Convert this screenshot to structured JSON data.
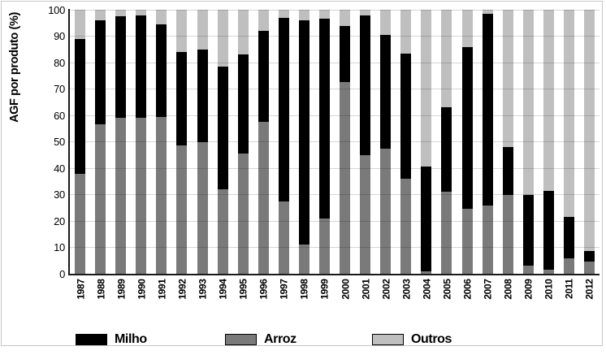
{
  "figure": {
    "background": "#ffffff",
    "border_color": "#c6c6c6",
    "axis_color": "#1a1a1a",
    "gridline_color": "#d6d6d6"
  },
  "legend": {
    "items": [
      {
        "label": "Milho",
        "color": "#000000"
      },
      {
        "label": "Arroz",
        "color": "#7a7a7a"
      },
      {
        "label": "Outros",
        "color": "#bfbfbf"
      }
    ]
  },
  "chart_data": {
    "type": "bar",
    "subtype": "stacked-100-percent",
    "title": "",
    "xlabel": "",
    "ylabel": "AGF por produto (%)",
    "ylim": [
      0,
      100
    ],
    "y_ticks": [
      0,
      10,
      20,
      30,
      40,
      50,
      60,
      70,
      80,
      90,
      100
    ],
    "grid": true,
    "legend_position": "bottom",
    "x_label_rotation_degrees": -90,
    "stack_order_bottom_to_top": [
      "Arroz",
      "Milho",
      "Outros"
    ],
    "categories": [
      "1987",
      "1988",
      "1989",
      "1990",
      "1991",
      "1992",
      "1993",
      "1994",
      "1995",
      "1996",
      "1997",
      "1998",
      "1999",
      "2000",
      "2001",
      "2002",
      "2003",
      "2004",
      "2005",
      "2006",
      "2007",
      "2008",
      "2009",
      "2010",
      "2011",
      "2012"
    ],
    "series": [
      {
        "name": "Arroz",
        "color": "#7a7a7a",
        "values": [
          38,
          56.5,
          59,
          59,
          59.5,
          48.5,
          50,
          32,
          45.5,
          57.5,
          27.5,
          11,
          21,
          72.5,
          45,
          47.5,
          36,
          1,
          31,
          24.5,
          26,
          30,
          3,
          1.5,
          6,
          4.5
        ]
      },
      {
        "name": "Milho",
        "color": "#000000",
        "values": [
          51,
          39.5,
          38.5,
          39,
          35,
          35.5,
          35,
          46.5,
          37.5,
          34.5,
          69.5,
          85,
          75.5,
          21.5,
          53,
          43,
          47.5,
          39.5,
          32,
          61.5,
          72.5,
          18,
          27,
          30,
          15.5,
          4
        ]
      },
      {
        "name": "Outros",
        "color": "#bfbfbf",
        "values": [
          11,
          4,
          2.5,
          2,
          5.5,
          16,
          15,
          21.5,
          17,
          8,
          3,
          4,
          3.5,
          6,
          2,
          9.5,
          16.5,
          59.5,
          37,
          14,
          1.5,
          52,
          70,
          68.5,
          78.5,
          91.5
        ]
      }
    ]
  }
}
